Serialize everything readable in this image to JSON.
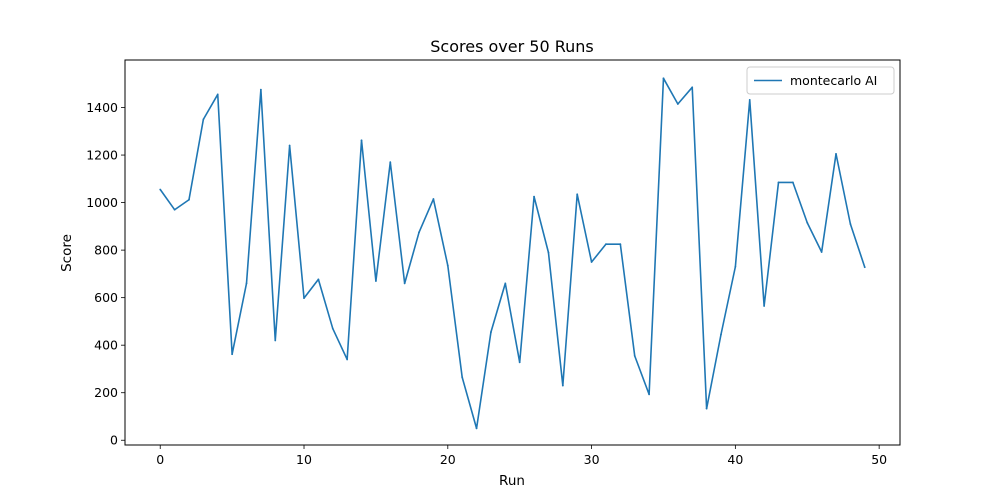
{
  "chart_data": {
    "type": "line",
    "title": "Scores over 50 Runs",
    "xlabel": "Run",
    "ylabel": "Score",
    "xlim": [
      -2.45,
      51.45
    ],
    "ylim": [
      -20,
      1600
    ],
    "xticks": [
      0,
      10,
      20,
      30,
      40,
      50
    ],
    "yticks": [
      0,
      200,
      400,
      600,
      800,
      1000,
      1200,
      1400
    ],
    "grid": false,
    "legend_position": "top-right",
    "series": [
      {
        "name": "montecarlo AI",
        "color": "#1f77b4",
        "x": [
          0,
          1,
          2,
          3,
          4,
          5,
          6,
          7,
          8,
          9,
          10,
          11,
          12,
          13,
          14,
          15,
          16,
          17,
          18,
          19,
          20,
          21,
          22,
          23,
          24,
          25,
          26,
          27,
          28,
          29,
          30,
          31,
          32,
          33,
          34,
          35,
          36,
          37,
          38,
          39,
          40,
          41,
          42,
          43,
          44,
          45,
          46,
          47,
          48,
          49
        ],
        "y": [
          1055,
          970,
          1012,
          1350,
          1455,
          362,
          660,
          1475,
          420,
          1240,
          598,
          677,
          470,
          340,
          1262,
          670,
          1170,
          660,
          875,
          1015,
          735,
          265,
          50,
          455,
          660,
          328,
          1025,
          790,
          230,
          1035,
          750,
          825,
          825,
          355,
          193,
          1523,
          1415,
          1485,
          133,
          445,
          730,
          1432,
          565,
          1085,
          1085,
          915,
          792,
          1205,
          910,
          728
        ]
      }
    ]
  }
}
